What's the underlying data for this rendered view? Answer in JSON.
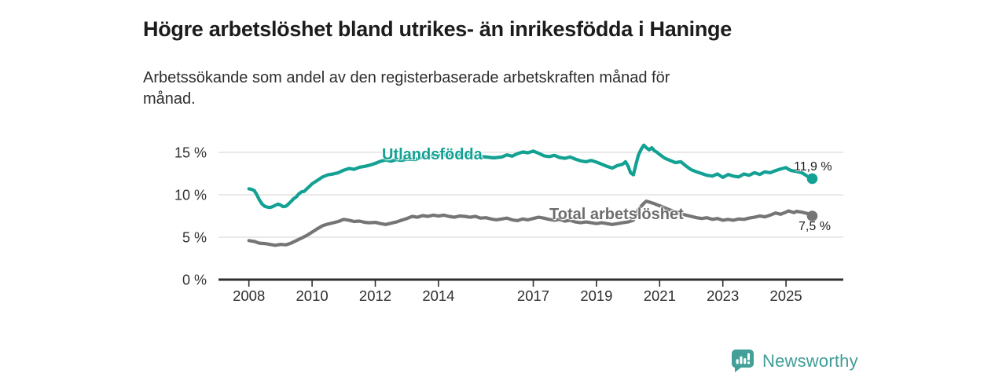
{
  "header": {
    "title": "Högre arbetslöshet bland utrikes- än inrikesfödda i Haninge",
    "subtitle": "Arbetssökande som andel av den registerbaserade arbetskraften månad för månad."
  },
  "footer": {
    "brand": "Newsworthy"
  },
  "colors": {
    "series_utlandsfodda": "#12a193",
    "series_total": "#757575",
    "label_total_gray": "#6d6d6d",
    "axis": "#2f2f2f",
    "grid": "#dcdcdc",
    "tick_text": "#333333",
    "annotation_text": "#1d1d1d",
    "brand_teal": "#3f9d95"
  },
  "chart_data": {
    "type": "line",
    "title": "Högre arbetslöshet bland utrikes- än inrikesfödda i Haninge",
    "subtitle": "Arbetssökande som andel av den registerbaserade arbetskraften månad för månad.",
    "unit": "%",
    "grid": "horizontal",
    "legend_position": "inline-labels",
    "xlim": [
      2007.05,
      2026.8
    ],
    "ylim": [
      0,
      16.5
    ],
    "x_axis": {
      "ticks": [
        {
          "value": 2008,
          "label": "2008"
        },
        {
          "value": 2010,
          "label": "2010"
        },
        {
          "value": 2012,
          "label": "2012"
        },
        {
          "value": 2014,
          "label": "2014"
        },
        {
          "value": 2017,
          "label": "2017"
        },
        {
          "value": 2019,
          "label": "2019"
        },
        {
          "value": 2021,
          "label": "2021"
        },
        {
          "value": 2023,
          "label": "2023"
        },
        {
          "value": 2025,
          "label": "2025"
        }
      ]
    },
    "y_axis": {
      "ticks": [
        {
          "value": 15,
          "label": "15 %"
        },
        {
          "value": 10,
          "label": "10 %"
        },
        {
          "value": 5,
          "label": "5 %"
        },
        {
          "value": 0,
          "label": "0 %"
        }
      ]
    },
    "series": [
      {
        "name": "Utlandsfödda",
        "color": "#12a193",
        "end_value": 11.9,
        "end_label": "11,9 %",
        "points": [
          [
            2008.0,
            10.7
          ],
          [
            2008.08,
            10.65
          ],
          [
            2008.17,
            10.5
          ],
          [
            2008.25,
            10.0
          ],
          [
            2008.33,
            9.4
          ],
          [
            2008.42,
            8.9
          ],
          [
            2008.5,
            8.65
          ],
          [
            2008.58,
            8.55
          ],
          [
            2008.67,
            8.5
          ],
          [
            2008.75,
            8.6
          ],
          [
            2008.83,
            8.75
          ],
          [
            2008.92,
            8.9
          ],
          [
            2009.0,
            8.8
          ],
          [
            2009.08,
            8.6
          ],
          [
            2009.17,
            8.65
          ],
          [
            2009.25,
            8.9
          ],
          [
            2009.33,
            9.2
          ],
          [
            2009.42,
            9.55
          ],
          [
            2009.5,
            9.75
          ],
          [
            2009.58,
            10.1
          ],
          [
            2009.67,
            10.35
          ],
          [
            2009.75,
            10.4
          ],
          [
            2009.83,
            10.7
          ],
          [
            2009.92,
            11.0
          ],
          [
            2010.0,
            11.3
          ],
          [
            2010.17,
            11.7
          ],
          [
            2010.33,
            12.1
          ],
          [
            2010.5,
            12.35
          ],
          [
            2010.67,
            12.45
          ],
          [
            2010.83,
            12.6
          ],
          [
            2011.0,
            12.9
          ],
          [
            2011.17,
            13.1
          ],
          [
            2011.33,
            13.0
          ],
          [
            2011.5,
            13.25
          ],
          [
            2011.67,
            13.35
          ],
          [
            2011.83,
            13.5
          ],
          [
            2012.0,
            13.7
          ],
          [
            2012.17,
            13.95
          ],
          [
            2012.33,
            14.1
          ],
          [
            2012.5,
            13.95
          ],
          [
            2012.67,
            14.15
          ],
          [
            2012.83,
            14.05
          ],
          [
            2013.0,
            14.2
          ],
          [
            2013.25,
            14.15
          ],
          [
            2013.5,
            14.45
          ],
          [
            2013.75,
            14.55
          ],
          [
            2014.0,
            14.65
          ],
          [
            2014.25,
            14.75
          ],
          [
            2014.5,
            14.6
          ],
          [
            2014.75,
            14.8
          ],
          [
            2015.0,
            14.7
          ],
          [
            2015.25,
            14.55
          ],
          [
            2015.5,
            14.45
          ],
          [
            2015.75,
            14.35
          ],
          [
            2016.0,
            14.45
          ],
          [
            2016.17,
            14.7
          ],
          [
            2016.33,
            14.55
          ],
          [
            2016.5,
            14.85
          ],
          [
            2016.67,
            15.05
          ],
          [
            2016.83,
            14.95
          ],
          [
            2017.0,
            15.15
          ],
          [
            2017.17,
            14.9
          ],
          [
            2017.33,
            14.6
          ],
          [
            2017.5,
            14.5
          ],
          [
            2017.67,
            14.65
          ],
          [
            2017.83,
            14.4
          ],
          [
            2018.0,
            14.3
          ],
          [
            2018.17,
            14.45
          ],
          [
            2018.33,
            14.2
          ],
          [
            2018.5,
            14.0
          ],
          [
            2018.67,
            13.9
          ],
          [
            2018.83,
            14.05
          ],
          [
            2019.0,
            13.85
          ],
          [
            2019.17,
            13.6
          ],
          [
            2019.33,
            13.35
          ],
          [
            2019.5,
            13.15
          ],
          [
            2019.67,
            13.45
          ],
          [
            2019.83,
            13.6
          ],
          [
            2019.92,
            13.9
          ],
          [
            2020.0,
            13.4
          ],
          [
            2020.08,
            12.6
          ],
          [
            2020.17,
            12.35
          ],
          [
            2020.25,
            13.6
          ],
          [
            2020.33,
            14.7
          ],
          [
            2020.42,
            15.4
          ],
          [
            2020.5,
            15.85
          ],
          [
            2020.58,
            15.55
          ],
          [
            2020.67,
            15.3
          ],
          [
            2020.75,
            15.55
          ],
          [
            2020.83,
            15.2
          ],
          [
            2020.92,
            15.0
          ],
          [
            2021.0,
            14.75
          ],
          [
            2021.17,
            14.3
          ],
          [
            2021.33,
            14.05
          ],
          [
            2021.5,
            13.8
          ],
          [
            2021.67,
            13.9
          ],
          [
            2021.83,
            13.4
          ],
          [
            2022.0,
            12.95
          ],
          [
            2022.17,
            12.7
          ],
          [
            2022.33,
            12.5
          ],
          [
            2022.5,
            12.3
          ],
          [
            2022.67,
            12.2
          ],
          [
            2022.83,
            12.45
          ],
          [
            2023.0,
            12.05
          ],
          [
            2023.17,
            12.4
          ],
          [
            2023.33,
            12.2
          ],
          [
            2023.5,
            12.1
          ],
          [
            2023.67,
            12.45
          ],
          [
            2023.83,
            12.3
          ],
          [
            2024.0,
            12.6
          ],
          [
            2024.17,
            12.4
          ],
          [
            2024.33,
            12.7
          ],
          [
            2024.5,
            12.6
          ],
          [
            2024.67,
            12.85
          ],
          [
            2024.83,
            13.05
          ],
          [
            2025.0,
            13.2
          ],
          [
            2025.08,
            13.0
          ],
          [
            2025.17,
            12.85
          ],
          [
            2025.33,
            12.75
          ],
          [
            2025.5,
            12.6
          ],
          [
            2025.67,
            12.2
          ],
          [
            2025.83,
            11.9
          ]
        ]
      },
      {
        "name": "Total arbetslöshet",
        "color": "#757575",
        "end_value": 7.5,
        "end_label": "7,5 %",
        "points": [
          [
            2008.0,
            4.6
          ],
          [
            2008.17,
            4.5
          ],
          [
            2008.33,
            4.3
          ],
          [
            2008.5,
            4.25
          ],
          [
            2008.67,
            4.15
          ],
          [
            2008.83,
            4.05
          ],
          [
            2009.0,
            4.15
          ],
          [
            2009.17,
            4.1
          ],
          [
            2009.33,
            4.3
          ],
          [
            2009.5,
            4.6
          ],
          [
            2009.67,
            4.9
          ],
          [
            2009.83,
            5.2
          ],
          [
            2010.0,
            5.6
          ],
          [
            2010.17,
            6.0
          ],
          [
            2010.33,
            6.35
          ],
          [
            2010.5,
            6.55
          ],
          [
            2010.67,
            6.7
          ],
          [
            2010.83,
            6.85
          ],
          [
            2011.0,
            7.1
          ],
          [
            2011.17,
            7.0
          ],
          [
            2011.33,
            6.85
          ],
          [
            2011.5,
            6.9
          ],
          [
            2011.67,
            6.75
          ],
          [
            2011.83,
            6.7
          ],
          [
            2012.0,
            6.75
          ],
          [
            2012.17,
            6.6
          ],
          [
            2012.33,
            6.5
          ],
          [
            2012.5,
            6.65
          ],
          [
            2012.67,
            6.8
          ],
          [
            2012.83,
            7.0
          ],
          [
            2013.0,
            7.2
          ],
          [
            2013.17,
            7.45
          ],
          [
            2013.33,
            7.35
          ],
          [
            2013.5,
            7.55
          ],
          [
            2013.67,
            7.45
          ],
          [
            2013.83,
            7.6
          ],
          [
            2014.0,
            7.5
          ],
          [
            2014.17,
            7.6
          ],
          [
            2014.33,
            7.45
          ],
          [
            2014.5,
            7.35
          ],
          [
            2014.67,
            7.5
          ],
          [
            2014.83,
            7.45
          ],
          [
            2015.0,
            7.35
          ],
          [
            2015.17,
            7.45
          ],
          [
            2015.33,
            7.25
          ],
          [
            2015.5,
            7.3
          ],
          [
            2015.67,
            7.15
          ],
          [
            2015.83,
            7.05
          ],
          [
            2016.0,
            7.15
          ],
          [
            2016.17,
            7.25
          ],
          [
            2016.33,
            7.05
          ],
          [
            2016.5,
            6.95
          ],
          [
            2016.67,
            7.15
          ],
          [
            2016.83,
            7.05
          ],
          [
            2017.0,
            7.2
          ],
          [
            2017.17,
            7.35
          ],
          [
            2017.33,
            7.25
          ],
          [
            2017.5,
            7.1
          ],
          [
            2017.67,
            7.0
          ],
          [
            2017.83,
            7.1
          ],
          [
            2018.0,
            6.9
          ],
          [
            2018.17,
            7.0
          ],
          [
            2018.33,
            6.8
          ],
          [
            2018.5,
            6.7
          ],
          [
            2018.67,
            6.8
          ],
          [
            2018.83,
            6.7
          ],
          [
            2019.0,
            6.6
          ],
          [
            2019.17,
            6.7
          ],
          [
            2019.33,
            6.6
          ],
          [
            2019.5,
            6.5
          ],
          [
            2019.67,
            6.6
          ],
          [
            2019.83,
            6.7
          ],
          [
            2020.0,
            6.8
          ],
          [
            2020.17,
            7.0
          ],
          [
            2020.33,
            8.3
          ],
          [
            2020.5,
            9.0
          ],
          [
            2020.58,
            9.25
          ],
          [
            2020.67,
            9.15
          ],
          [
            2020.83,
            8.95
          ],
          [
            2021.0,
            8.7
          ],
          [
            2021.17,
            8.45
          ],
          [
            2021.33,
            8.2
          ],
          [
            2021.5,
            8.0
          ],
          [
            2021.67,
            7.8
          ],
          [
            2021.83,
            7.6
          ],
          [
            2022.0,
            7.45
          ],
          [
            2022.17,
            7.3
          ],
          [
            2022.33,
            7.2
          ],
          [
            2022.5,
            7.3
          ],
          [
            2022.67,
            7.1
          ],
          [
            2022.83,
            7.2
          ],
          [
            2023.0,
            7.0
          ],
          [
            2023.17,
            7.1
          ],
          [
            2023.33,
            7.0
          ],
          [
            2023.5,
            7.15
          ],
          [
            2023.67,
            7.1
          ],
          [
            2023.83,
            7.25
          ],
          [
            2024.0,
            7.35
          ],
          [
            2024.17,
            7.5
          ],
          [
            2024.33,
            7.4
          ],
          [
            2024.5,
            7.6
          ],
          [
            2024.67,
            7.85
          ],
          [
            2024.83,
            7.7
          ],
          [
            2025.0,
            7.95
          ],
          [
            2025.08,
            8.1
          ],
          [
            2025.25,
            7.9
          ],
          [
            2025.33,
            8.05
          ],
          [
            2025.5,
            7.95
          ],
          [
            2025.67,
            7.8
          ],
          [
            2025.83,
            7.5
          ]
        ]
      }
    ]
  }
}
